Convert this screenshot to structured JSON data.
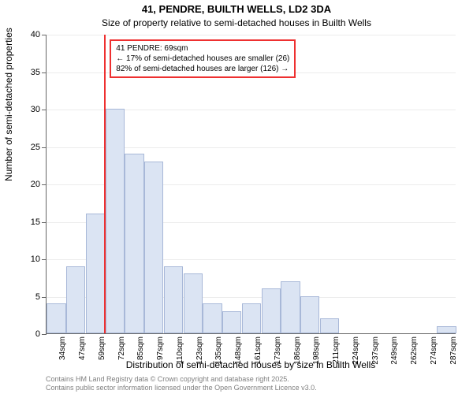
{
  "title": "41, PENDRE, BUILTH WELLS, LD2 3DA",
  "subtitle": "Size of property relative to semi-detached houses in Builth Wells",
  "ylabel": "Number of semi-detached properties",
  "xlabel": "Distribution of semi-detached houses by size in Builth Wells",
  "footer_line1": "Contains HM Land Registry data © Crown copyright and database right 2025.",
  "footer_line2": "Contains public sector information licensed under the Open Government Licence v3.0.",
  "chart": {
    "type": "histogram",
    "ylim": [
      0,
      40
    ],
    "ytick_step": 5,
    "bar_color": "#dbe4f3",
    "bar_border_color": "#a8b8d8",
    "grid_color": "#666666",
    "background_color": "#ffffff",
    "marker_color": "#ee3030",
    "annotation_border_color": "#ee3030",
    "categories": [
      "34sqm",
      "47sqm",
      "59sqm",
      "72sqm",
      "85sqm",
      "97sqm",
      "110sqm",
      "123sqm",
      "135sqm",
      "148sqm",
      "161sqm",
      "173sqm",
      "186sqm",
      "198sqm",
      "211sqm",
      "224sqm",
      "237sqm",
      "249sqm",
      "262sqm",
      "274sqm",
      "287sqm"
    ],
    "values": [
      4,
      9,
      16,
      30,
      24,
      23,
      9,
      8,
      4,
      3,
      4,
      6,
      7,
      5,
      2,
      0,
      0,
      0,
      0,
      0,
      1
    ],
    "marker_index_before": 2,
    "annotation": {
      "line1": "41 PENDRE: 69sqm",
      "line2": "← 17% of semi-detached houses are smaller (26)",
      "line3": "82% of semi-detached houses are larger (126) →"
    }
  }
}
